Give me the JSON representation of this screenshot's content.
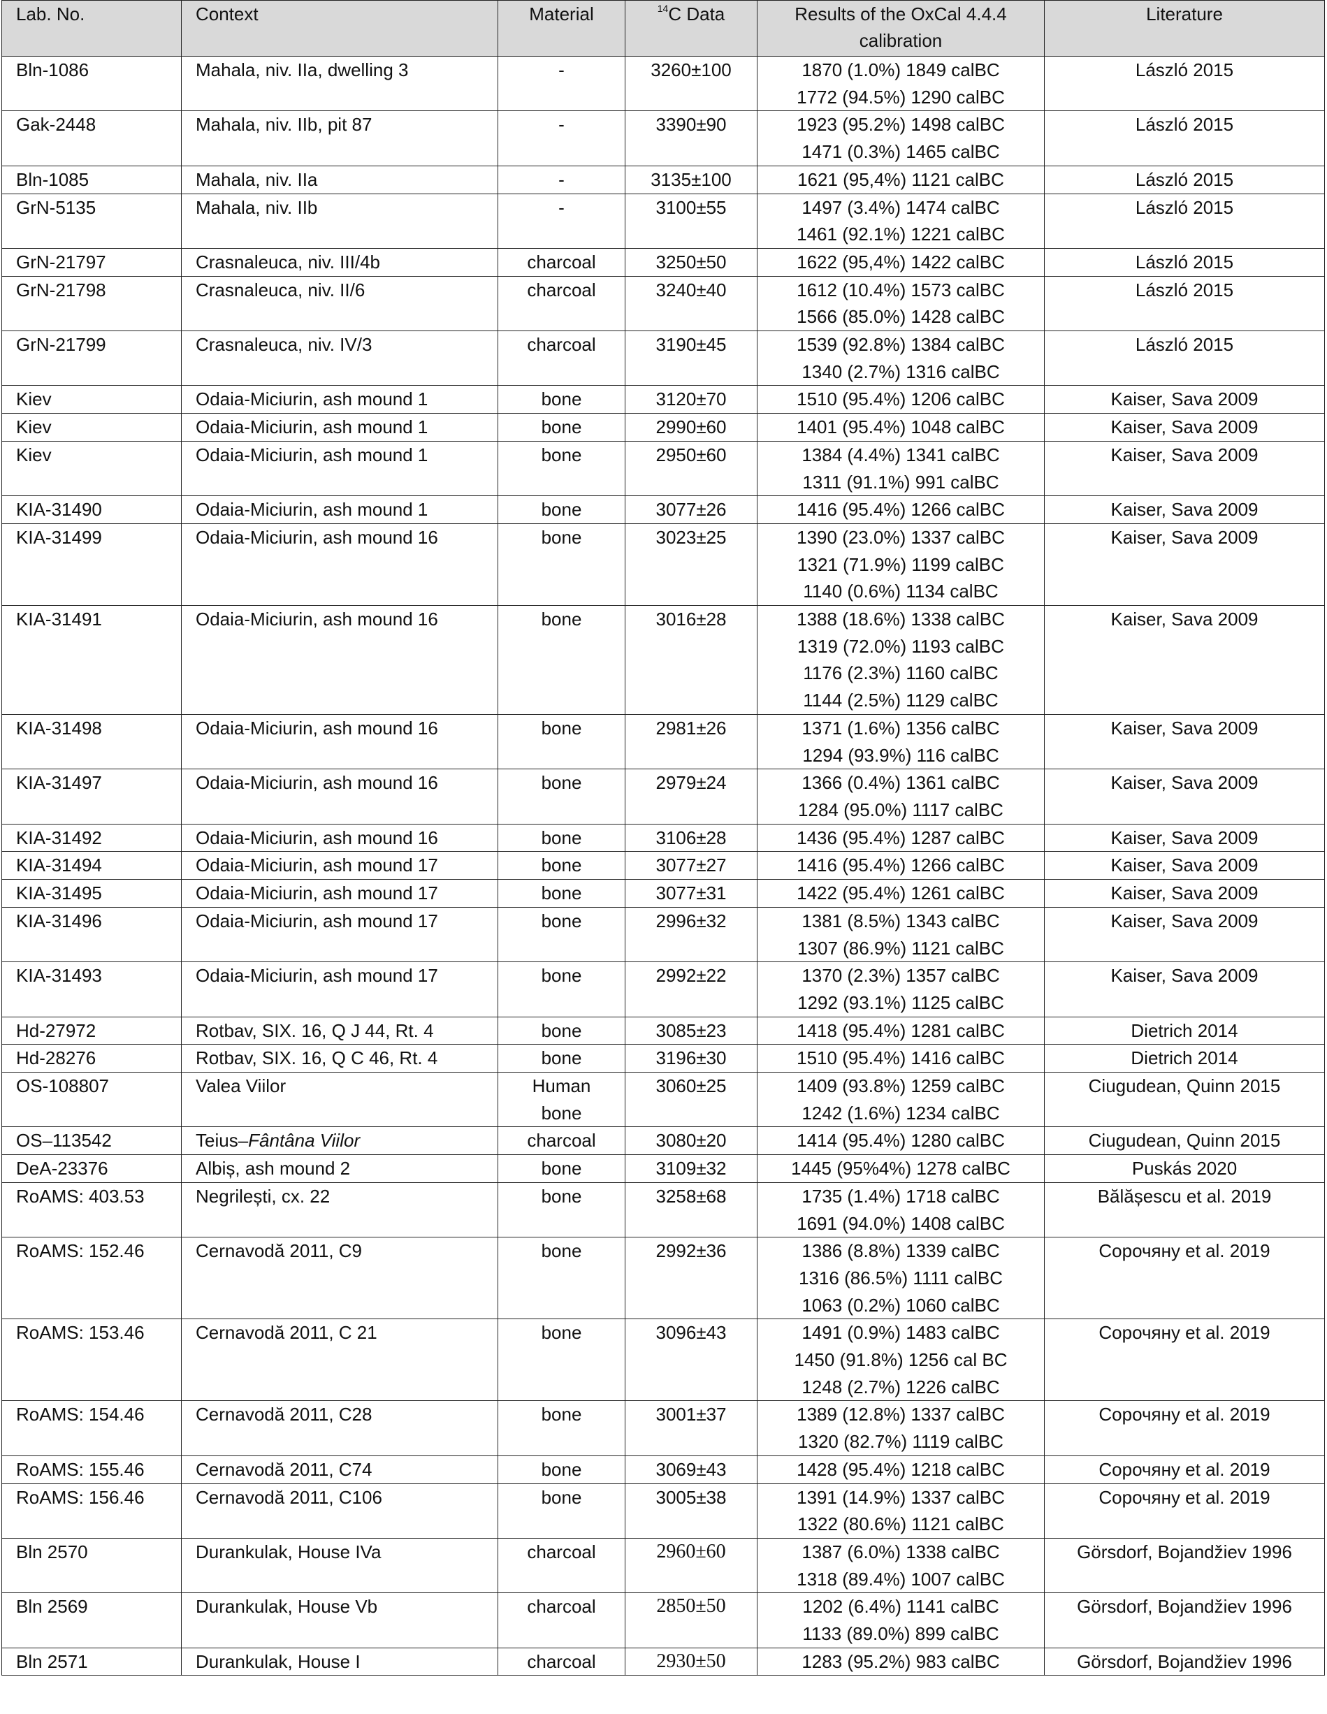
{
  "header": {
    "lab_no": "Lab. No.",
    "context": "Context",
    "material": "Material",
    "c14_sup": "14",
    "c14": "C Data",
    "results": "Results of the OxCal 4.4.4 calibration",
    "literature": "Literature"
  },
  "rows": [
    {
      "lab": "Bln-1086",
      "context": [
        {
          "text": "Mahala, niv. IIa, dwelling 3"
        }
      ],
      "material": [
        "-"
      ],
      "c14": "3260±100",
      "results": [
        "1870 (1.0%) 1849 calBC",
        "1772 (94.5%) 1290 calBC"
      ],
      "lit": "László 2015"
    },
    {
      "lab": "Gak-2448",
      "context": [
        {
          "text": "Mahala, niv. IIb, pit 87"
        }
      ],
      "material": [
        "-"
      ],
      "c14": "3390±90",
      "results": [
        "1923 (95.2%) 1498 calBC",
        "1471 (0.3%) 1465 calBC"
      ],
      "lit": "László 2015"
    },
    {
      "lab": "Bln-1085",
      "context": [
        {
          "text": "Mahala, niv. IIa"
        }
      ],
      "material": [
        "-"
      ],
      "c14": "3135±100",
      "results": [
        "1621 (95,4%) 1121 calBC"
      ],
      "lit": "László 2015"
    },
    {
      "lab": "GrN-5135",
      "context": [
        {
          "text": "Mahala, niv. IIb"
        }
      ],
      "material": [
        "-"
      ],
      "c14": "3100±55",
      "results": [
        "1497 (3.4%) 1474 calBC",
        "1461 (92.1%) 1221 calBC"
      ],
      "lit": "László 2015"
    },
    {
      "lab": "GrN-21797",
      "context": [
        {
          "text": "Crasnaleuca, niv. III/4b"
        }
      ],
      "material": [
        "charcoal"
      ],
      "c14": "3250±50",
      "results": [
        "1622 (95,4%) 1422 calBC"
      ],
      "lit": "László 2015"
    },
    {
      "lab": "GrN-21798",
      "context": [
        {
          "text": "Crasnaleuca, niv. II/6"
        }
      ],
      "material": [
        "charcoal"
      ],
      "c14": "3240±40",
      "results": [
        "1612 (10.4%) 1573 calBC",
        "1566 (85.0%) 1428 calBC"
      ],
      "lit": "László 2015"
    },
    {
      "lab": "GrN-21799",
      "context": [
        {
          "text": "Crasnaleuca, niv. IV/3"
        }
      ],
      "material": [
        "charcoal"
      ],
      "c14": "3190±45",
      "results": [
        "1539 (92.8%) 1384 calBC",
        "1340 (2.7%) 1316 calBC"
      ],
      "lit": "László 2015"
    },
    {
      "lab": "Kiev",
      "context": [
        {
          "text": "Odaia-Miciurin, ash mound 1"
        }
      ],
      "material": [
        "bone"
      ],
      "c14": "3120±70",
      "results": [
        "1510 (95.4%) 1206 calBC"
      ],
      "lit": "Kaiser, Sava 2009"
    },
    {
      "lab": "Kiev",
      "context": [
        {
          "text": "Odaia-Miciurin, ash mound 1"
        }
      ],
      "material": [
        "bone"
      ],
      "c14": "2990±60",
      "results": [
        "1401 (95.4%) 1048 calBC"
      ],
      "lit": "Kaiser, Sava 2009"
    },
    {
      "lab": "Kiev",
      "context": [
        {
          "text": "Odaia-Miciurin, ash mound 1"
        }
      ],
      "material": [
        "bone"
      ],
      "c14": "2950±60",
      "results": [
        "1384 (4.4%) 1341 calBC",
        "1311 (91.1%) 991 calBC"
      ],
      "lit": "Kaiser, Sava 2009"
    },
    {
      "lab": "KIA-31490",
      "context": [
        {
          "text": "Odaia-Miciurin, ash mound 1"
        }
      ],
      "material": [
        "bone"
      ],
      "c14": "3077±26",
      "results": [
        "1416 (95.4%) 1266 calBC"
      ],
      "lit": "Kaiser, Sava 2009"
    },
    {
      "lab": "KIA-31499",
      "context": [
        {
          "text": "Odaia-Miciurin, ash mound 16"
        }
      ],
      "material": [
        "bone"
      ],
      "c14": "3023±25",
      "results": [
        "1390 (23.0%) 1337 calBC",
        "1321 (71.9%) 1199 calBC",
        "1140 (0.6%) 1134 calBC"
      ],
      "lit": "Kaiser, Sava 2009"
    },
    {
      "lab": "KIA-31491",
      "context": [
        {
          "text": "Odaia-Miciurin, ash mound 16"
        }
      ],
      "material": [
        "bone"
      ],
      "c14": "3016±28",
      "results": [
        "1388 (18.6%) 1338 calBC",
        "1319 (72.0%) 1193 calBC",
        "1176 (2.3%) 1160 calBC",
        "1144 (2.5%) 1129 calBC"
      ],
      "lit": "Kaiser, Sava 2009"
    },
    {
      "lab": "KIA-31498",
      "context": [
        {
          "text": "Odaia-Miciurin, ash mound 16"
        }
      ],
      "material": [
        "bone"
      ],
      "c14": "2981±26",
      "results": [
        "1371 (1.6%) 1356 calBC",
        "1294 (93.9%) 116 calBC"
      ],
      "lit": "Kaiser, Sava 2009"
    },
    {
      "lab": "KIA-31497",
      "context": [
        {
          "text": "Odaia-Miciurin, ash mound 16"
        }
      ],
      "material": [
        "bone"
      ],
      "c14": "2979±24",
      "results": [
        "1366 (0.4%) 1361 calBC",
        "1284 (95.0%) 1117 calBC"
      ],
      "lit": "Kaiser, Sava 2009"
    },
    {
      "lab": "KIA-31492",
      "context": [
        {
          "text": "Odaia-Miciurin, ash mound 16"
        }
      ],
      "material": [
        "bone"
      ],
      "c14": "3106±28",
      "results": [
        "1436 (95.4%) 1287 calBC"
      ],
      "lit": "Kaiser, Sava 2009"
    },
    {
      "lab": "KIA-31494",
      "context": [
        {
          "text": "Odaia-Miciurin, ash mound 17"
        }
      ],
      "material": [
        "bone"
      ],
      "c14": "3077±27",
      "results": [
        "1416 (95.4%) 1266 calBC"
      ],
      "lit": "Kaiser, Sava 2009"
    },
    {
      "lab": "KIA-31495",
      "context": [
        {
          "text": "Odaia-Miciurin, ash mound 17"
        }
      ],
      "material": [
        "bone"
      ],
      "c14": "3077±31",
      "results": [
        "1422 (95.4%) 1261 calBC"
      ],
      "lit": "Kaiser, Sava 2009"
    },
    {
      "lab": "KIA-31496",
      "context": [
        {
          "text": "Odaia-Miciurin, ash mound 17"
        }
      ],
      "material": [
        "bone"
      ],
      "c14": "2996±32",
      "results": [
        "1381 (8.5%) 1343 calBC",
        "1307 (86.9%) 1121 calBC"
      ],
      "lit": "Kaiser, Sava 2009"
    },
    {
      "lab": "KIA-31493",
      "context": [
        {
          "text": "Odaia-Miciurin, ash mound 17"
        }
      ],
      "material": [
        "bone"
      ],
      "c14": "2992±22",
      "results": [
        "1370 (2.3%) 1357 calBC",
        "1292 (93.1%) 1125 calBC"
      ],
      "lit": "Kaiser, Sava 2009"
    },
    {
      "lab": "Hd-27972",
      "context": [
        {
          "text": "Rotbav, SIX. 16, Q J 44, Rt. 4"
        }
      ],
      "material": [
        "bone"
      ],
      "c14": "3085±23",
      "results": [
        "1418 (95.4%) 1281 calBC"
      ],
      "lit": "Dietrich 2014"
    },
    {
      "lab": "Hd-28276",
      "context": [
        {
          "text": "Rotbav, SIX. 16, Q C 46, Rt. 4"
        }
      ],
      "material": [
        "bone"
      ],
      "c14": "3196±30",
      "results": [
        "1510 (95.4%) 1416 calBC"
      ],
      "lit": "Dietrich 2014"
    },
    {
      "lab": "OS-108807",
      "context": [
        {
          "text": "Valea Viilor"
        }
      ],
      "material": [
        "Human",
        "bone"
      ],
      "c14": "3060±25",
      "results": [
        "1409 (93.8%) 1259 calBC",
        "1242 (1.6%) 1234 calBC"
      ],
      "lit": "Ciugudean, Quinn 2015"
    },
    {
      "lab": "OS–113542",
      "context": [
        {
          "text": "Teius–"
        },
        {
          "text": "Fântâna Viilor",
          "italic": true
        }
      ],
      "material": [
        "charcoal"
      ],
      "c14": "3080±20",
      "results": [
        "1414 (95.4%) 1280 calBC"
      ],
      "lit": "Ciugudean, Quinn 2015"
    },
    {
      "lab": "DeA-23376",
      "context": [
        {
          "text": "Albiș, ash mound 2"
        }
      ],
      "material": [
        "bone"
      ],
      "c14": "3109±32",
      "results": [
        "1445 (95%4%) 1278 calBC"
      ],
      "lit": "Puskás 2020"
    },
    {
      "lab": "RoAMS: 403.53",
      "context": [
        {
          "text": "Negrilești, cx. 22"
        }
      ],
      "material": [
        "bone"
      ],
      "c14": "3258±68",
      "results": [
        "1735 (1.4%) 1718 calBC",
        "1691 (94.0%) 1408 calBC"
      ],
      "lit": "Bălășescu et al. 2019"
    },
    {
      "lab": "RoAMS: 152.46",
      "context": [
        {
          "text": "Cernavodă 2011, C9"
        }
      ],
      "material": [
        "bone"
      ],
      "c14": "2992±36",
      "results": [
        "1386 (8.8%) 1339 calBC",
        "1316 (86.5%) 1111 calBC",
        "1063 (0.2%) 1060 calBC"
      ],
      "lit": "Сорочяну et al. 2019"
    },
    {
      "lab": "RoAMS: 153.46",
      "context": [
        {
          "text": "Cernavodă 2011, C 21"
        }
      ],
      "material": [
        "bone"
      ],
      "c14": "3096±43",
      "results": [
        "1491 (0.9%) 1483 calBC",
        "1450 (91.8%) 1256 cal BC",
        "1248 (2.7%) 1226 calBC"
      ],
      "lit": "Сорочяну et al. 2019"
    },
    {
      "lab": "RoAMS: 154.46",
      "context": [
        {
          "text": "Cernavodă 2011, C28"
        }
      ],
      "material": [
        "bone"
      ],
      "c14": "3001±37",
      "results": [
        "1389 (12.8%) 1337 calBC",
        "1320 (82.7%) 1119 calBC"
      ],
      "lit": "Сорочяну et al. 2019"
    },
    {
      "lab": "RoAMS: 155.46",
      "context": [
        {
          "text": "Cernavodă 2011, C74"
        }
      ],
      "material": [
        "bone"
      ],
      "c14": "3069±43",
      "results": [
        "1428 (95.4%) 1218 calBC"
      ],
      "lit": "Сорочяну et al. 2019"
    },
    {
      "lab": "RoAMS: 156.46",
      "context": [
        {
          "text": "Cernavodă 2011, C106"
        }
      ],
      "material": [
        "bone"
      ],
      "c14": "3005±38",
      "results": [
        "1391 (14.9%) 1337 calBC",
        "1322 (80.6%) 1121 calBC"
      ],
      "lit": "Сорочяну et al. 2019"
    },
    {
      "lab": "Bln 2570",
      "context": [
        {
          "text": "Durankulak, House IVa"
        }
      ],
      "material": [
        "charcoal"
      ],
      "c14": "2960±60",
      "results": [
        "1387 (6.0%) 1338 calBC",
        "1318 (89.4%) 1007 calBC"
      ],
      "lit": "Görsdorf, Bojandžiev 1996"
    },
    {
      "lab": "Bln 2569",
      "context": [
        {
          "text": "Durankulak, House Vb"
        }
      ],
      "material": [
        "charcoal"
      ],
      "c14": "2850±50",
      "results": [
        "1202 (6.4%) 1141 calBC",
        "1133 (89.0%) 899 calBC"
      ],
      "lit": "Görsdorf, Bojandžiev 1996"
    },
    {
      "lab": "Bln 2571",
      "context": [
        {
          "text": "Durankulak, House I"
        }
      ],
      "material": [
        "charcoal"
      ],
      "c14": "2930±50",
      "results": [
        "1283 (95.2%) 983 calBC"
      ],
      "lit": "Görsdorf, Bojandžiev 1996"
    }
  ]
}
